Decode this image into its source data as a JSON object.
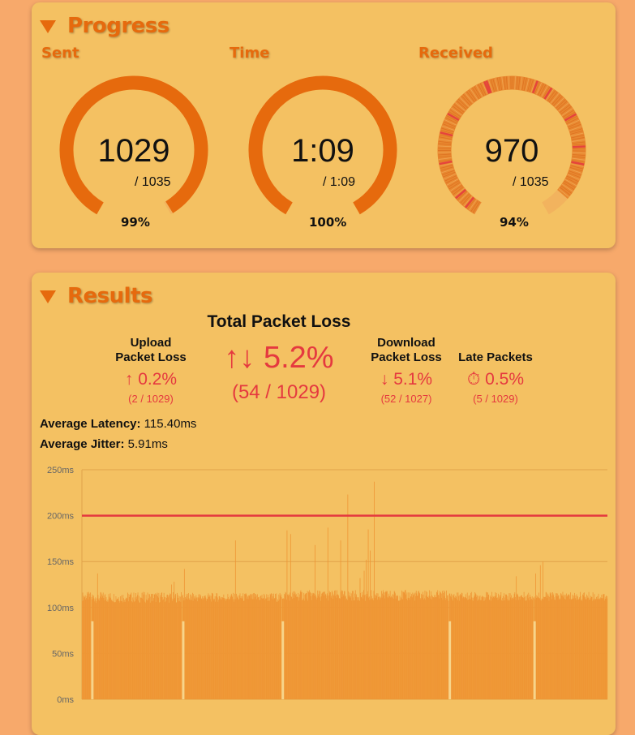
{
  "progress": {
    "title": "Progress",
    "sent": {
      "label": "Sent",
      "value": "1029",
      "total": "/ 1035",
      "percent": "99%",
      "fraction": 0.994
    },
    "time": {
      "label": "Time",
      "value": "1:09",
      "total": "/ 1:09",
      "percent": "100%",
      "fraction": 1.0
    },
    "received": {
      "label": "Received",
      "value": "970",
      "total": "/ 1035",
      "percent": "94%",
      "fraction": 0.937
    }
  },
  "results": {
    "title": "Results",
    "total_loss": {
      "heading": "Total Packet Loss",
      "icon": "up-down-arrows-icon",
      "value": "5.2%",
      "detail": "(54 / 1029)"
    },
    "upload_loss": {
      "heading_line1": "Upload",
      "heading_line2": "Packet Loss",
      "icon": "up-arrow-icon",
      "value": "0.2%",
      "detail": "(2 / 1029)"
    },
    "download_loss": {
      "heading_line1": "Download",
      "heading_line2": "Packet Loss",
      "icon": "down-arrow-icon",
      "value": "5.1%",
      "detail": "(52 / 1027)"
    },
    "late_packets": {
      "heading": "Late Packets",
      "icon": "stopwatch-icon",
      "value": "0.5%",
      "detail": "(5 / 1029)"
    },
    "average_latency": {
      "label": "Average Latency:",
      "value": "115.40ms"
    },
    "average_jitter": {
      "label": "Average Jitter:",
      "value": "5.91ms"
    }
  },
  "colors": {
    "background": "#f7a96b",
    "card": "#f4c162",
    "accent": "#e66a0d",
    "loss_red": "#e5393f",
    "bar_fill": "#ef9635",
    "threshold_line": "#e5393f"
  },
  "chart_data": {
    "type": "bar",
    "ylabel": "",
    "xlabel": "",
    "ylim": [
      0,
      250
    ],
    "yticks": [
      "0ms",
      "50ms",
      "100ms",
      "150ms",
      "200ms",
      "250ms"
    ],
    "threshold": 200,
    "grid": true,
    "series": [
      {
        "type": "bar",
        "samples": 1029,
        "segments": [
          {
            "from": 0,
            "to": 18,
            "base": 112,
            "spread": 5
          },
          {
            "from": 18,
            "to": 196,
            "base": 111,
            "spread": 6
          },
          {
            "from": 196,
            "to": 391,
            "base": 111,
            "spread": 5
          },
          {
            "from": 391,
            "to": 718,
            "base": 113,
            "spread": 6
          },
          {
            "from": 718,
            "to": 884,
            "base": 112,
            "spread": 5
          },
          {
            "from": 884,
            "to": 1029,
            "base": 112,
            "spread": 5
          }
        ],
        "spikes": [
          {
            "at": 30,
            "value": 137
          },
          {
            "at": 175,
            "value": 125
          },
          {
            "at": 180,
            "value": 128
          },
          {
            "at": 200,
            "value": 142
          },
          {
            "at": 300,
            "value": 173
          },
          {
            "at": 401,
            "value": 184
          },
          {
            "at": 408,
            "value": 180
          },
          {
            "at": 456,
            "value": 168
          },
          {
            "at": 481,
            "value": 187
          },
          {
            "at": 506,
            "value": 173
          },
          {
            "at": 520,
            "value": 223
          },
          {
            "at": 544,
            "value": 132
          },
          {
            "at": 552,
            "value": 140
          },
          {
            "at": 556,
            "value": 152
          },
          {
            "at": 560,
            "value": 185
          },
          {
            "at": 564,
            "value": 162
          },
          {
            "at": 572,
            "value": 237
          },
          {
            "at": 850,
            "value": 134
          },
          {
            "at": 888,
            "value": 137
          },
          {
            "at": 897,
            "value": 146
          },
          {
            "at": 902,
            "value": 150
          }
        ],
        "gaps": [
          18,
          196,
          391,
          718,
          884
        ]
      }
    ]
  }
}
